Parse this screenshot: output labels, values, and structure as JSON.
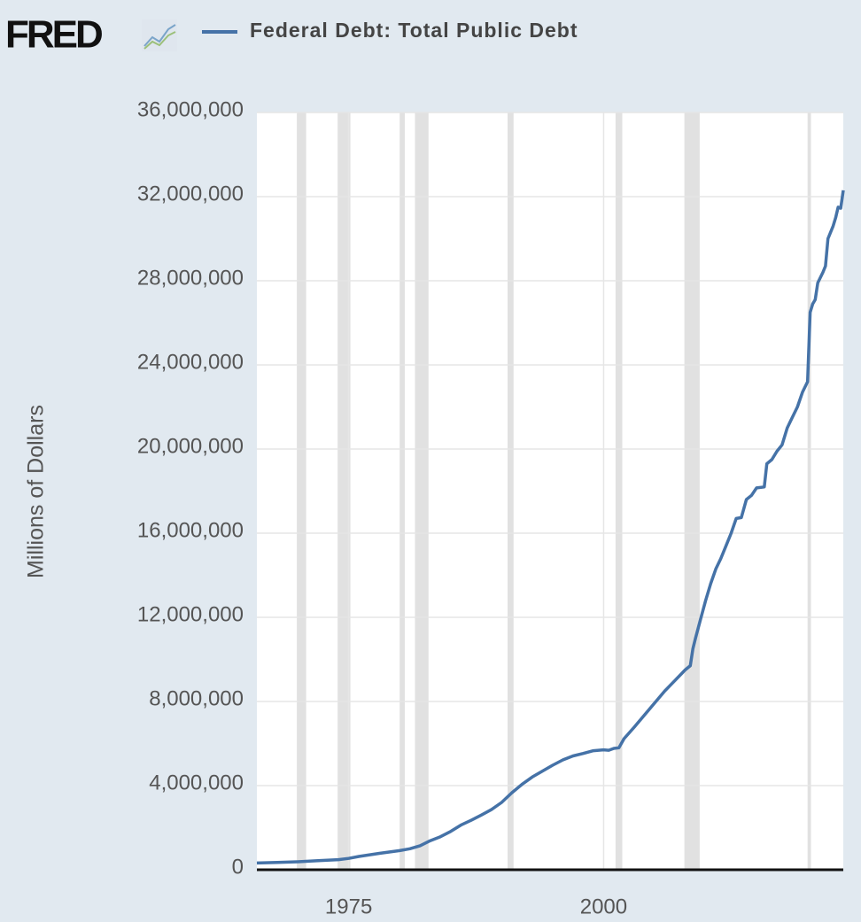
{
  "chart_data": {
    "type": "line",
    "logo": "FRED",
    "ylabel": "Millions of Dollars",
    "x": [
      1966,
      1968,
      1970,
      1972,
      1974,
      1975,
      1976,
      1978,
      1980,
      1981,
      1982,
      1983,
      1984,
      1985,
      1986,
      1987,
      1988,
      1989,
      1990,
      1991,
      1992,
      1993,
      1994,
      1995,
      1996,
      1997,
      1998,
      1999,
      2000,
      2000.5,
      2001,
      2001.5,
      2002,
      2003,
      2004,
      2005,
      2006,
      2007,
      2008,
      2008.5,
      2008.75,
      2009,
      2009.5,
      2010,
      2010.5,
      2011,
      2011.5,
      2012,
      2012.5,
      2013,
      2013.5,
      2014,
      2014.5,
      2015,
      2015.75,
      2016,
      2016.5,
      2017,
      2017.5,
      2018,
      2018.5,
      2019,
      2019.5,
      2020,
      2020.25,
      2020.5,
      2020.75,
      2021,
      2021.5,
      2021.75,
      2022,
      2022.5,
      2022.75,
      2023,
      2023.25,
      2023.5
    ],
    "series": [
      {
        "name": "Federal Debt: Total Public Debt",
        "color": "#4572a7",
        "values": [
          320000,
          350000,
          380000,
          430000,
          480000,
          540000,
          630000,
          780000,
          910000,
          1000000,
          1140000,
          1380000,
          1570000,
          1820000,
          2120000,
          2350000,
          2600000,
          2860000,
          3200000,
          3660000,
          4060000,
          4410000,
          4690000,
          4970000,
          5220000,
          5410000,
          5530000,
          5660000,
          5700000,
          5680000,
          5770000,
          5800000,
          6230000,
          6780000,
          7350000,
          7930000,
          8500000,
          9000000,
          9500000,
          9700000,
          10500000,
          11000000,
          11900000,
          12800000,
          13600000,
          14300000,
          14800000,
          15400000,
          16000000,
          16700000,
          16740000,
          17600000,
          17800000,
          18150000,
          18200000,
          19300000,
          19500000,
          19900000,
          20200000,
          21000000,
          21500000,
          22000000,
          22700000,
          23200000,
          26500000,
          26900000,
          27100000,
          27900000,
          28400000,
          28700000,
          30000000,
          30600000,
          31000000,
          31500000,
          31450000,
          32300000
        ]
      }
    ],
    "recessions": [
      [
        1969.92,
        1970.83
      ],
      [
        1973.92,
        1975.17
      ],
      [
        1980.0,
        1980.5
      ],
      [
        1981.5,
        1982.83
      ],
      [
        1990.58,
        1991.17
      ],
      [
        2001.17,
        2001.83
      ],
      [
        2007.92,
        2009.42
      ],
      [
        2020.0,
        2020.33
      ]
    ],
    "recession_color": "#e1e1e1",
    "xlim": [
      1966,
      2023.5
    ],
    "xticks": [
      1975,
      2000
    ],
    "ylim": [
      0,
      36000000
    ],
    "yticks": [
      {
        "value": 0,
        "label": "0"
      },
      {
        "value": 4000000,
        "label": "4,000,000"
      },
      {
        "value": 8000000,
        "label": "8,000,000"
      },
      {
        "value": 12000000,
        "label": "12,000,000"
      },
      {
        "value": 16000000,
        "label": "16,000,000"
      },
      {
        "value": 20000000,
        "label": "20,000,000"
      },
      {
        "value": 24000000,
        "label": "24,000,000"
      },
      {
        "value": 28000000,
        "label": "28,000,000"
      },
      {
        "value": 32000000,
        "label": "32,000,000"
      },
      {
        "value": 36000000,
        "label": "36,000,000"
      }
    ],
    "grid": true
  }
}
